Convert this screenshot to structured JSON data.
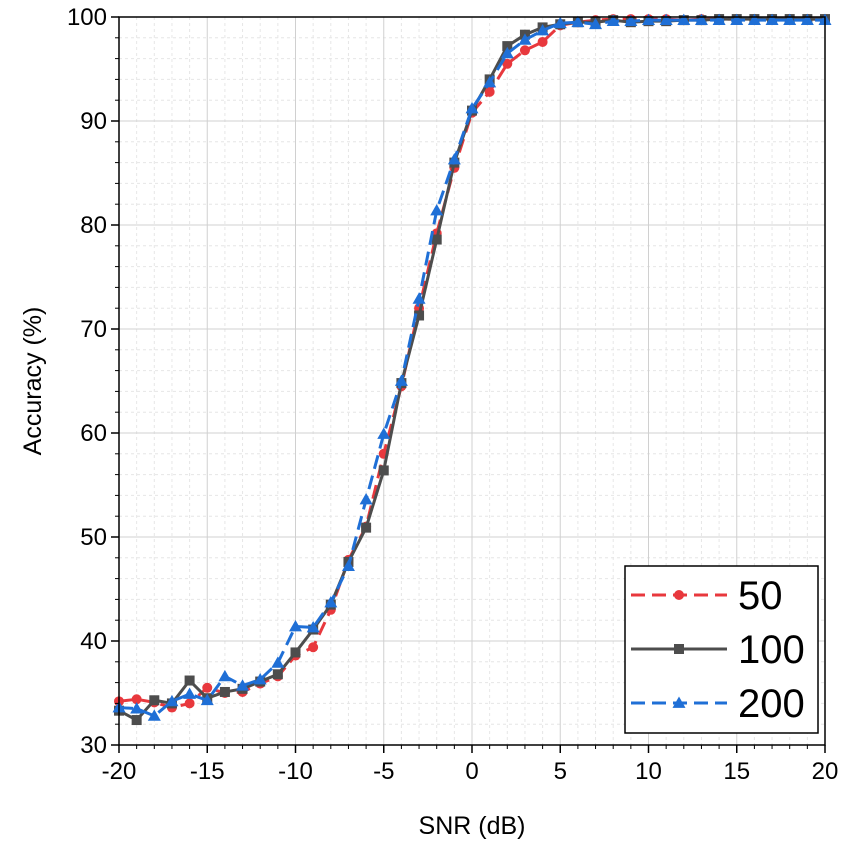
{
  "chart_data": {
    "type": "line",
    "title": "",
    "xlabel": "SNR (dB)",
    "ylabel": "Accuracy (%)",
    "xlim": [
      -20,
      20
    ],
    "ylim": [
      30,
      100
    ],
    "xticks": [
      -20,
      -15,
      -10,
      -5,
      0,
      5,
      10,
      15,
      20
    ],
    "xtick_labels": [
      "-20",
      "-15",
      "-10",
      "-5",
      "0",
      "5",
      "10",
      "15",
      "20"
    ],
    "yticks": [
      30,
      40,
      50,
      60,
      70,
      80,
      90,
      100
    ],
    "ytick_labels": [
      "30",
      "40",
      "50",
      "60",
      "70",
      "80",
      "90",
      "100"
    ],
    "grid": true,
    "legend_position": "bottom-right",
    "x": [
      -20,
      -19,
      -18,
      -17,
      -16,
      -15,
      -14,
      -13,
      -12,
      -11,
      -10,
      -9,
      -8,
      -7,
      -6,
      -5,
      -4,
      -3,
      -2,
      -1,
      0,
      1,
      2,
      3,
      4,
      5,
      6,
      7,
      8,
      9,
      10,
      11,
      12,
      13,
      14,
      15,
      16,
      17,
      18,
      19,
      20
    ],
    "series": [
      {
        "name": "50",
        "color": "#e8383d",
        "line_style": "dashed",
        "marker": "circle",
        "values": [
          34.2,
          34.4,
          34.1,
          33.6,
          34.0,
          35.5,
          35.0,
          35.1,
          35.9,
          36.6,
          38.6,
          39.4,
          43.0,
          47.8,
          51.0,
          58.0,
          64.5,
          72.0,
          79.2,
          85.5,
          90.8,
          92.8,
          95.5,
          96.8,
          97.6,
          99.2,
          99.5,
          99.7,
          99.8,
          99.8,
          99.8,
          99.8,
          99.7,
          99.8,
          99.8,
          99.8,
          99.8,
          99.8,
          99.8,
          99.8,
          99.8
        ]
      },
      {
        "name": "100",
        "color": "#4d4d4d",
        "line_style": "solid",
        "marker": "square",
        "values": [
          33.3,
          32.4,
          34.3,
          34.0,
          36.2,
          34.5,
          35.1,
          35.4,
          36.1,
          36.8,
          38.9,
          41.1,
          43.5,
          47.6,
          50.9,
          56.4,
          64.8,
          71.3,
          78.6,
          86.0,
          91.0,
          94.0,
          97.2,
          98.3,
          99.0,
          99.3,
          99.5,
          99.5,
          99.7,
          99.5,
          99.6,
          99.6,
          99.7,
          99.7,
          99.8,
          99.8,
          99.8,
          99.8,
          99.8,
          99.8,
          99.8
        ]
      },
      {
        "name": "200",
        "color": "#1f6fd6",
        "line_style": "dashed",
        "marker": "triangle",
        "values": [
          33.6,
          33.5,
          32.8,
          34.2,
          34.9,
          34.3,
          36.6,
          35.7,
          36.3,
          37.9,
          41.4,
          41.3,
          43.7,
          47.2,
          53.6,
          59.9,
          65.0,
          72.9,
          81.4,
          86.3,
          91.2,
          93.7,
          96.5,
          97.8,
          98.7,
          99.4,
          99.5,
          99.3,
          99.6,
          99.6,
          99.7,
          99.7,
          99.7,
          99.7,
          99.7,
          99.7,
          99.7,
          99.7,
          99.7,
          99.7,
          99.7
        ]
      }
    ]
  }
}
